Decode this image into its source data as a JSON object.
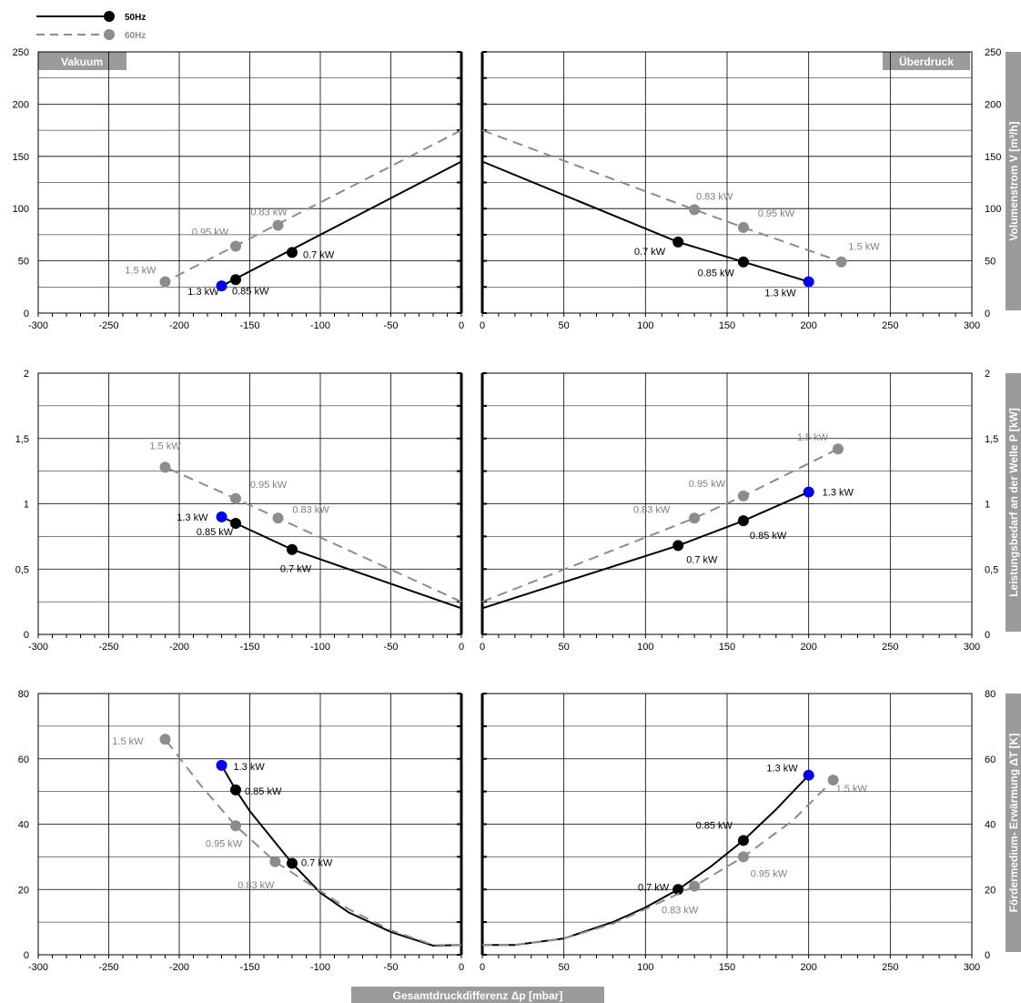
{
  "legend": [
    {
      "label": "50Hz",
      "color": "#000000",
      "dashed": false
    },
    {
      "label": "60Hz",
      "color": "#8c8c8c",
      "dashed": true
    }
  ],
  "region_labels": {
    "left": "Vakuum",
    "right": "Überdruck"
  },
  "x_axis_label": "Gesamtdruckdifferenz Δp [mbar]",
  "colors": {
    "black": "#000000",
    "gray": "#8c8c8c",
    "blue": "#0000ee",
    "label_box": "#9b9b9b"
  },
  "chart_data": [
    {
      "type": "line",
      "panel": "left",
      "ylabel": "",
      "xlim": [
        -300,
        0
      ],
      "ylim": [
        0,
        250
      ],
      "xticks": [
        -300,
        -250,
        -200,
        -150,
        -100,
        -50,
        0
      ],
      "yticks": [
        0,
        50,
        100,
        150,
        200,
        250
      ],
      "grid": true,
      "series": [
        {
          "name": "50Hz",
          "line": [
            [
              0,
              145
            ],
            [
              -170,
              26
            ]
          ],
          "points": [
            {
              "x": -120,
              "y": 58,
              "label": "0.7 kW"
            },
            {
              "x": -160,
              "y": 32,
              "label": "0.85 kW"
            },
            {
              "x": -170,
              "y": 26,
              "label": "1.3 kW",
              "highlight": true
            }
          ]
        },
        {
          "name": "60Hz",
          "line": [
            [
              0,
              175
            ],
            [
              -210,
              30
            ]
          ],
          "points": [
            {
              "x": -130,
              "y": 84,
              "label": "0.83 kW"
            },
            {
              "x": -160,
              "y": 64,
              "label": "0.95 kW"
            },
            {
              "x": -210,
              "y": 30,
              "label": "1.5 kW"
            }
          ]
        }
      ]
    },
    {
      "type": "line",
      "panel": "right",
      "ylabel": "Volumenstrom V [m³/h]",
      "xlim": [
        0,
        300
      ],
      "ylim": [
        0,
        250
      ],
      "xticks": [
        0,
        50,
        100,
        150,
        200,
        250,
        300
      ],
      "yticks": [
        0,
        50,
        100,
        150,
        200,
        250
      ],
      "grid": true,
      "series": [
        {
          "name": "50Hz",
          "line": [
            [
              0,
              145
            ],
            [
              120,
              68
            ],
            [
              160,
              49
            ],
            [
              200,
              30
            ]
          ],
          "points": [
            {
              "x": 120,
              "y": 68,
              "label": "0.7 kW"
            },
            {
              "x": 160,
              "y": 49,
              "label": "0.85 kW"
            },
            {
              "x": 200,
              "y": 30,
              "label": "1.3 kW",
              "highlight": true
            }
          ]
        },
        {
          "name": "60Hz",
          "line": [
            [
              0,
              175
            ],
            [
              130,
              99
            ],
            [
              160,
              82
            ],
            [
              220,
              49
            ]
          ],
          "points": [
            {
              "x": 130,
              "y": 99,
              "label": "0.83 kW"
            },
            {
              "x": 160,
              "y": 82,
              "label": "0.95 kW"
            },
            {
              "x": 220,
              "y": 49,
              "label": "1.5 kW"
            }
          ]
        }
      ]
    },
    {
      "type": "line",
      "panel": "left",
      "ylabel": "",
      "xlim": [
        -300,
        0
      ],
      "ylim": [
        0,
        2
      ],
      "xticks": [
        -300,
        -250,
        -200,
        -150,
        -100,
        -50,
        0
      ],
      "yticks": [
        0,
        0.5,
        1,
        1.5,
        2
      ],
      "ytick_labels": [
        "0",
        "0,5",
        "1",
        "1,5",
        "2"
      ],
      "grid": true,
      "series": [
        {
          "name": "50Hz",
          "line": [
            [
              0,
              0.2
            ],
            [
              -120,
              0.65
            ],
            [
              -160,
              0.85
            ],
            [
              -170,
              0.9
            ]
          ],
          "points": [
            {
              "x": -120,
              "y": 0.65,
              "label": "0.7 kW"
            },
            {
              "x": -160,
              "y": 0.85,
              "label": "0.85 kW"
            },
            {
              "x": -170,
              "y": 0.9,
              "label": "1.3 kW",
              "highlight": true
            }
          ]
        },
        {
          "name": "60Hz",
          "line": [
            [
              0,
              0.25
            ],
            [
              -130,
              0.89
            ],
            [
              -160,
              1.04
            ],
            [
              -210,
              1.28
            ]
          ],
          "points": [
            {
              "x": -130,
              "y": 0.89,
              "label": "0.83 kW"
            },
            {
              "x": -160,
              "y": 1.04,
              "label": "0.95 kW"
            },
            {
              "x": -210,
              "y": 1.28,
              "label": "1.5 kW"
            }
          ]
        }
      ]
    },
    {
      "type": "line",
      "panel": "right",
      "ylabel": "Leistungsbedarf an der Welle P [kW]",
      "xlim": [
        0,
        300
      ],
      "ylim": [
        0,
        2
      ],
      "xticks": [
        0,
        50,
        100,
        150,
        200,
        250,
        300
      ],
      "yticks": [
        0,
        0.5,
        1,
        1.5,
        2
      ],
      "ytick_labels": [
        "0",
        "0,5",
        "1",
        "1,5",
        "2"
      ],
      "grid": true,
      "series": [
        {
          "name": "50Hz",
          "line": [
            [
              0,
              0.2
            ],
            [
              120,
              0.68
            ],
            [
              160,
              0.87
            ],
            [
              200,
              1.09
            ]
          ],
          "points": [
            {
              "x": 120,
              "y": 0.68,
              "label": "0.7 kW"
            },
            {
              "x": 160,
              "y": 0.87,
              "label": "0.85 kW"
            },
            {
              "x": 200,
              "y": 1.09,
              "label": "1.3 kW",
              "highlight": true
            }
          ]
        },
        {
          "name": "60Hz",
          "line": [
            [
              0,
              0.25
            ],
            [
              130,
              0.89
            ],
            [
              160,
              1.06
            ],
            [
              218,
              1.42
            ]
          ],
          "points": [
            {
              "x": 130,
              "y": 0.89,
              "label": "0.83 kW"
            },
            {
              "x": 160,
              "y": 1.06,
              "label": "0.95 kW"
            },
            {
              "x": 218,
              "y": 1.42,
              "label": "1.5 kW"
            }
          ]
        }
      ]
    },
    {
      "type": "line",
      "panel": "left",
      "ylabel": "",
      "xlim": [
        -300,
        0
      ],
      "ylim": [
        0,
        80
      ],
      "xticks": [
        -300,
        -250,
        -200,
        -150,
        -100,
        -50,
        0
      ],
      "yticks": [
        0,
        20,
        40,
        60,
        80
      ],
      "grid": true,
      "series": [
        {
          "name": "50Hz",
          "line": [
            [
              0,
              3
            ],
            [
              -20,
              2.8
            ],
            [
              -50,
              7
            ],
            [
              -80,
              13
            ],
            [
              -100,
              19
            ],
            [
              -120,
              28
            ],
            [
              -135,
              36
            ],
            [
              -150,
              44
            ],
            [
              -160,
              50.5
            ],
            [
              -170,
              58
            ]
          ],
          "points": [
            {
              "x": -120,
              "y": 28,
              "label": "0.7 kW"
            },
            {
              "x": -160,
              "y": 50.5,
              "label": "0.85 kW"
            },
            {
              "x": -170,
              "y": 58,
              "label": "1.3 kW",
              "highlight": true
            }
          ]
        },
        {
          "name": "60Hz",
          "line": [
            [
              0,
              3
            ],
            [
              -20,
              3
            ],
            [
              -50,
              7.5
            ],
            [
              -80,
              14
            ],
            [
              -100,
              19.5
            ],
            [
              -132,
              28.5
            ],
            [
              -160,
              39.5
            ],
            [
              -185,
              52
            ],
            [
              -210,
              66
            ]
          ],
          "points": [
            {
              "x": -132,
              "y": 28.5,
              "label": "0.83 kW"
            },
            {
              "x": -160,
              "y": 39.5,
              "label": "0.95 kW"
            },
            {
              "x": -210,
              "y": 66,
              "label": "1.5 kW"
            }
          ]
        }
      ]
    },
    {
      "type": "line",
      "panel": "right",
      "ylabel": "Fördermedium- Erwärmung ΔT [K]",
      "xlim": [
        0,
        300
      ],
      "ylim": [
        0,
        80
      ],
      "xticks": [
        0,
        50,
        100,
        150,
        200,
        250,
        300
      ],
      "yticks": [
        0,
        20,
        40,
        60,
        80
      ],
      "grid": true,
      "series": [
        {
          "name": "50Hz",
          "line": [
            [
              0,
              3
            ],
            [
              20,
              3
            ],
            [
              50,
              5
            ],
            [
              80,
              10
            ],
            [
              100,
              14.5
            ],
            [
              120,
              20
            ],
            [
              140,
              27
            ],
            [
              160,
              35
            ],
            [
              180,
              44.5
            ],
            [
              200,
              55
            ]
          ],
          "points": [
            {
              "x": 120,
              "y": 20,
              "label": "0.7 kW"
            },
            {
              "x": 160,
              "y": 35,
              "label": "0.85 kW"
            },
            {
              "x": 200,
              "y": 55,
              "label": "1.3 kW",
              "highlight": true
            }
          ]
        },
        {
          "name": "60Hz",
          "line": [
            [
              0,
              3
            ],
            [
              20,
              3
            ],
            [
              50,
              5
            ],
            [
              80,
              9.5
            ],
            [
              100,
              14
            ],
            [
              130,
              21
            ],
            [
              160,
              30
            ],
            [
              190,
              41
            ],
            [
              215,
              53.5
            ]
          ],
          "points": [
            {
              "x": 130,
              "y": 21,
              "label": "0.83 kW"
            },
            {
              "x": 160,
              "y": 30,
              "label": "0.95 kW"
            },
            {
              "x": 215,
              "y": 53.5,
              "label": "1.5 kW"
            }
          ]
        }
      ]
    }
  ]
}
